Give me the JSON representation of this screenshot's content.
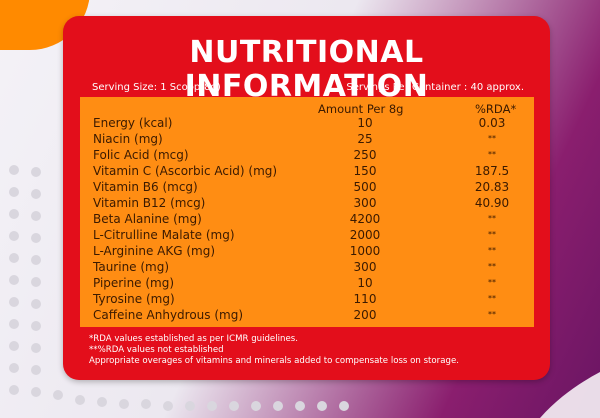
{
  "panel": {
    "title": "NUTRITIONAL INFORMATION",
    "serving_size": "Serving Size: 1 Scoop(8g)",
    "servings_per_container": "Servings Per Container : 40 approx."
  },
  "table": {
    "header_amount": "Amount Per 8g",
    "header_rda": "%RDA*",
    "rows": [
      {
        "name": "Energy (kcal)",
        "amount": "10",
        "rda": "0.03"
      },
      {
        "name": "Niacin (mg)",
        "amount": "25",
        "rda": "**"
      },
      {
        "name": "Folic Acid (mcg)",
        "amount": "250",
        "rda": "**"
      },
      {
        "name": "Vitamin C (Ascorbic Acid) (mg)",
        "amount": "150",
        "rda": "187.5"
      },
      {
        "name": "Vitamin B6 (mcg)",
        "amount": "500",
        "rda": "20.83"
      },
      {
        "name": "Vitamin B12 (mcg)",
        "amount": "300",
        "rda": "40.90"
      },
      {
        "name": "Beta Alanine (mg)",
        "amount": "4200",
        "rda": "**"
      },
      {
        "name": "L-Citrulline Malate (mg)",
        "amount": "2000",
        "rda": "**"
      },
      {
        "name": "L-Arginine AKG (mg)",
        "amount": "1000",
        "rda": "**"
      },
      {
        "name": "Taurine (mg)",
        "amount": "300",
        "rda": "**"
      },
      {
        "name": "Piperine (mg)",
        "amount": "10",
        "rda": "**"
      },
      {
        "name": "Tyrosine (mg)",
        "amount": "110",
        "rda": "**"
      },
      {
        "name": "Caffeine Anhydrous (mg)",
        "amount": "200",
        "rda": "**"
      }
    ]
  },
  "notes": {
    "line1": "*RDA values established as per ICMR guidelines.",
    "line2": "**%RDA values not established",
    "line3": "Appropriate overages of vitamins and minerals added to compensate loss on storage."
  },
  "colors": {
    "panel": "#e30e1b",
    "table": "#ff8d13",
    "accent_orange": "#ff8a00",
    "accent_purple": "#7a1a68"
  }
}
